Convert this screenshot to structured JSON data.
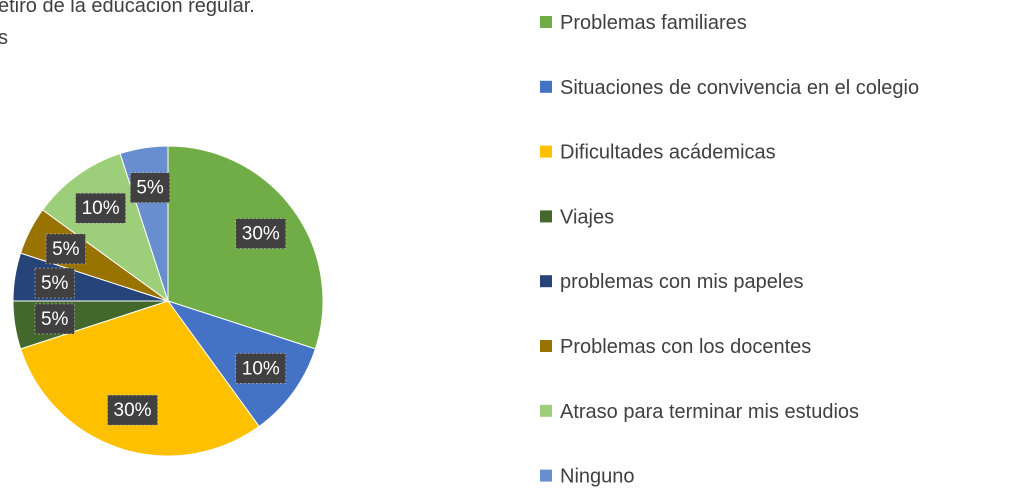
{
  "chart_data": {
    "type": "pie",
    "title": [
      "etiro de la educación regular.",
      "s"
    ],
    "categories": [
      "Problemas familiares",
      "Situaciones de convivencia en el colegio",
      "Dificultades acádemicas",
      "Viajes",
      "problemas con mis papeles",
      "Problemas con los docentes",
      "Atraso para terminar mis estudios",
      "Ninguno"
    ],
    "values": [
      30,
      10,
      30,
      5,
      5,
      5,
      10,
      5
    ],
    "value_labels": [
      "30%",
      "10%",
      "30%",
      "5%",
      "5%",
      "5%",
      "10%",
      "5%"
    ],
    "colors": [
      "#70ad47",
      "#4472c4",
      "#ffc000",
      "#43682b",
      "#264478",
      "#997300",
      "#9dce7a",
      "#698ed0"
    ],
    "legend": "right"
  }
}
